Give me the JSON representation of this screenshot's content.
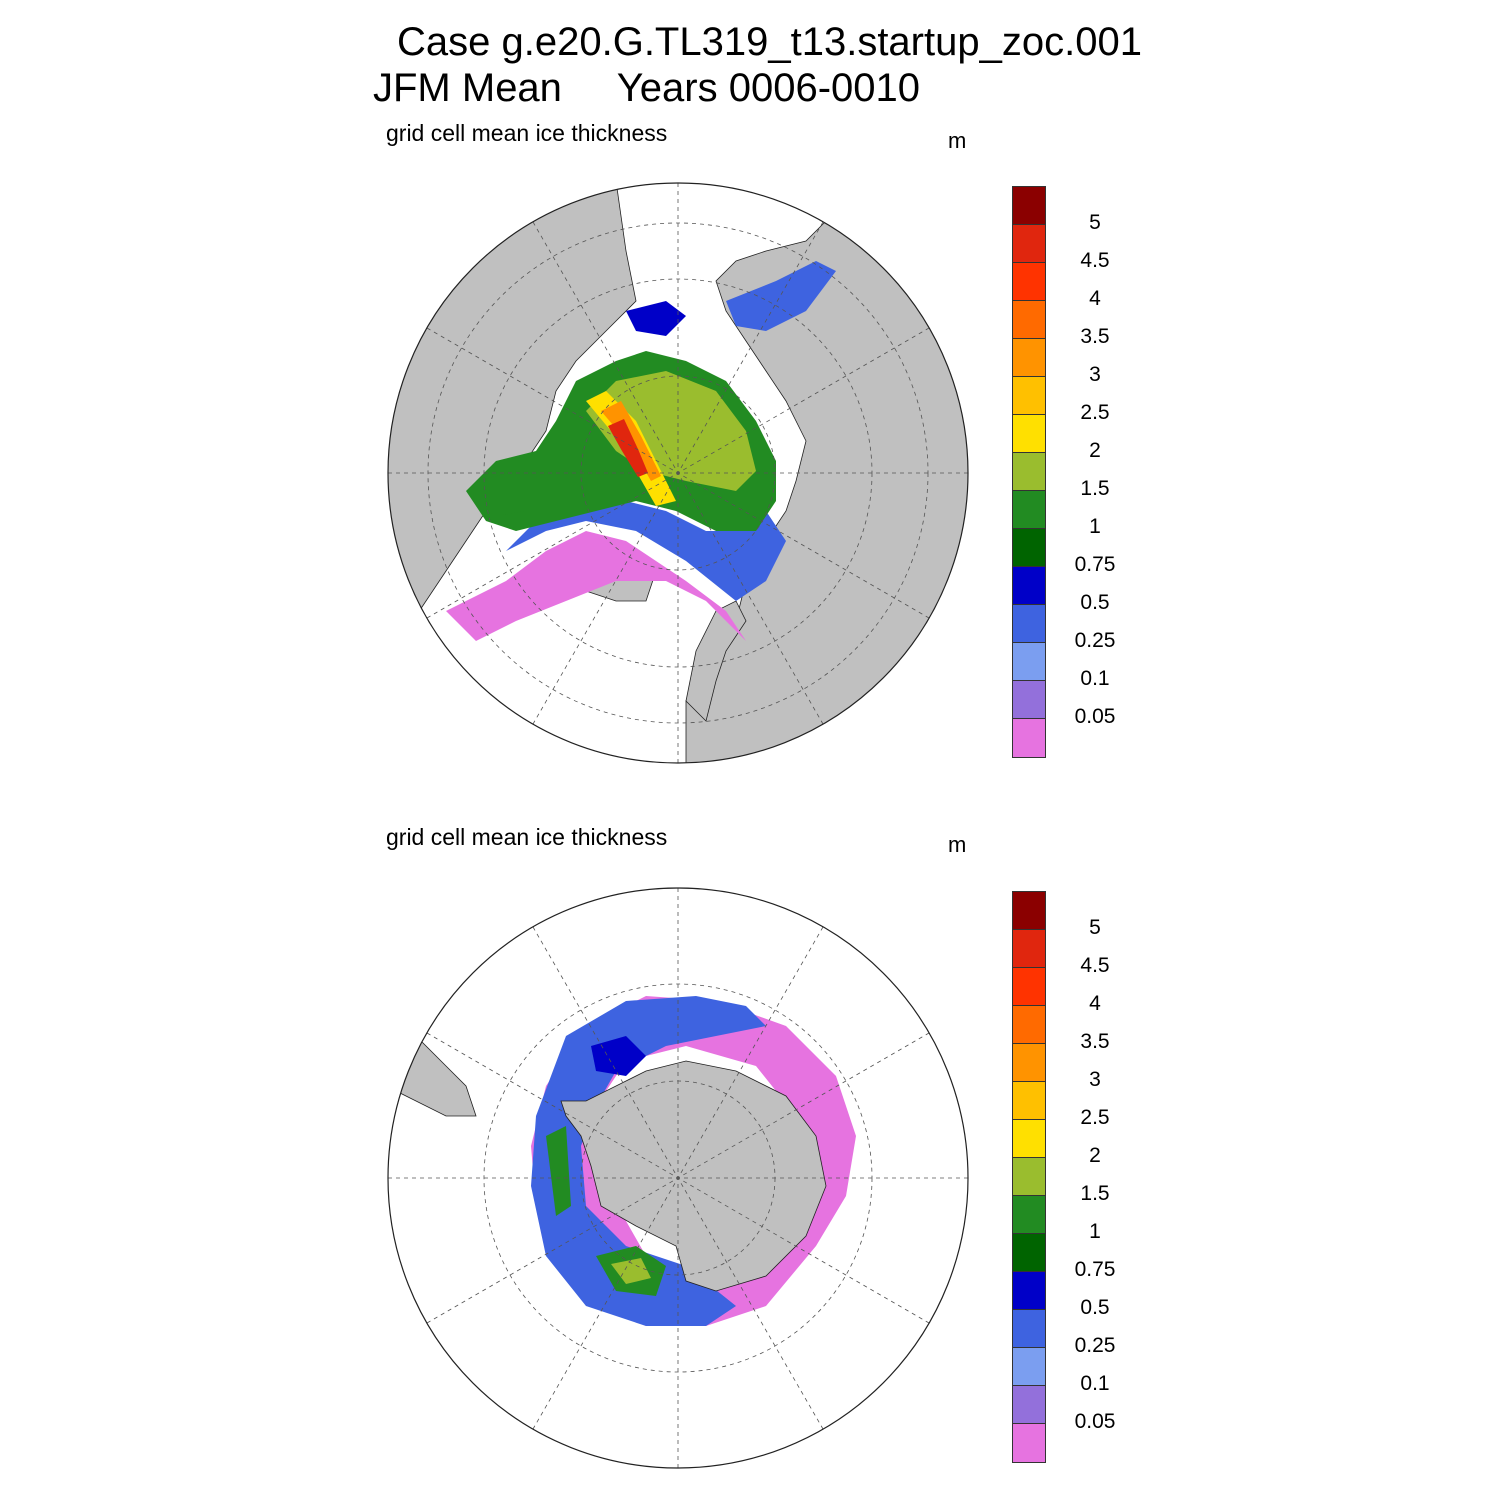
{
  "figure": {
    "title_line1": "Case g.e20.G.TL319_t13.startup_zoc.001",
    "title_line2": "JFM Mean     Years 0006-0010"
  },
  "panels": [
    {
      "id": "north",
      "label": "grid cell mean ice thickness",
      "units": "m",
      "hemisphere": "north"
    },
    {
      "id": "south",
      "label": "grid cell mean ice thickness",
      "units": "m",
      "hemisphere": "south"
    }
  ],
  "colorbar": {
    "levels": [
      "0.05",
      "0.1",
      "0.25",
      "0.5",
      "0.75",
      "1",
      "1.5",
      "2",
      "2.5",
      "3",
      "3.5",
      "4",
      "4.5",
      "5"
    ],
    "colors": [
      "#e673e0",
      "#9370db",
      "#7b9ef0",
      "#3e63e0",
      "#0000c8",
      "#006400",
      "#228b22",
      "#9abd2e",
      "#ffe000",
      "#ffc000",
      "#ff9300",
      "#ff6a00",
      "#ff3300",
      "#e0260e",
      "#8b0000"
    ]
  },
  "colors": {
    "land": "#c0c0c0",
    "ocean": "#ffffff",
    "grid": "#555555"
  }
}
